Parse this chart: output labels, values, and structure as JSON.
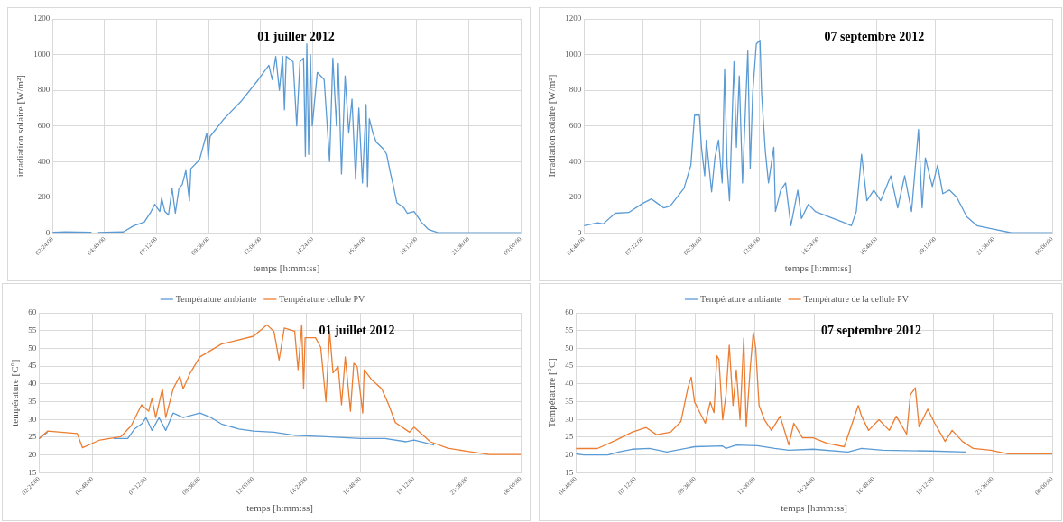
{
  "chart_data": [
    {
      "type": "line",
      "title": "01 juiller 2012",
      "xlabel": "temps [h:mm:ss]",
      "ylabel": "irradiation solaire [W/m²]",
      "grid": true,
      "legend": false,
      "marker": "none",
      "line_style": "solid",
      "xlim": [
        "2012-07-01T02:24",
        "2012-07-02T00:00"
      ],
      "xticks": [
        {
          "value": "2012-07-01T02:24",
          "label": "02:24:00"
        },
        {
          "value": "2012-07-01T04:48",
          "label": "04:48:00"
        },
        {
          "value": "2012-07-01T07:12",
          "label": "07:12:00"
        },
        {
          "value": "2012-07-01T09:36",
          "label": "09:36:00"
        },
        {
          "value": "2012-07-01T12:00",
          "label": "12:00:00"
        },
        {
          "value": "2012-07-01T14:24",
          "label": "14:24:00"
        },
        {
          "value": "2012-07-01T16:48",
          "label": "16:48:00"
        },
        {
          "value": "2012-07-01T19:12",
          "label": "19:12:00"
        },
        {
          "value": "2012-07-01T21:36",
          "label": "21:36:00"
        },
        {
          "value": "2012-07-02T00:00",
          "label": "00:00:00"
        }
      ],
      "ylim": [
        0,
        1200
      ],
      "yticks": [
        0,
        200,
        400,
        600,
        800,
        1000,
        1200
      ],
      "series": [
        {
          "color": "#5b9bd5",
          "x": [
            "2012-07-01T02:24",
            "2012-07-01T03:00",
            "2012-07-01T04:12",
            "2012-07-01T04:18",
            "2012-07-01T04:30",
            "2012-07-01T05:12",
            "2012-07-01T05:40",
            "2012-07-01T06:09",
            "2012-07-01T06:38",
            "2012-07-01T06:57",
            "2012-07-01T07:07",
            "2012-07-01T07:21",
            "2012-07-01T07:26",
            "2012-07-01T07:35",
            "2012-07-01T07:45",
            "2012-07-01T07:55",
            "2012-07-01T08:04",
            "2012-07-01T08:14",
            "2012-07-01T08:23",
            "2012-07-01T08:33",
            "2012-07-01T08:43",
            "2012-07-01T08:47",
            "2012-07-01T09:11",
            "2012-07-01T09:31",
            "2012-07-01T09:35",
            "2012-07-01T09:40",
            "2012-07-01T10:19",
            "2012-07-01T11:07",
            "2012-07-01T11:54",
            "2012-07-01T12:23",
            "2012-07-01T12:32",
            "2012-07-01T12:42",
            "2012-07-01T12:52",
            "2012-07-01T13:01",
            "2012-07-01T13:06",
            "2012-07-01T13:11",
            "2012-07-01T13:30",
            "2012-07-01T13:40",
            "2012-07-01T13:49",
            "2012-07-01T13:59",
            "2012-07-01T14:04",
            "2012-07-01T14:08",
            "2012-07-01T14:13",
            "2012-07-01T14:18",
            "2012-07-01T14:23",
            "2012-07-01T14:37",
            "2012-07-01T14:56",
            "2012-07-01T15:11",
            "2012-07-01T15:20",
            "2012-07-01T15:30",
            "2012-07-01T15:35",
            "2012-07-01T15:44",
            "2012-07-01T15:54",
            "2012-07-01T16:04",
            "2012-07-01T16:13",
            "2012-07-01T16:23",
            "2012-07-01T16:32",
            "2012-07-01T16:42",
            "2012-07-01T16:52",
            "2012-07-01T16:56",
            "2012-07-01T17:01",
            "2012-07-01T17:11",
            "2012-07-01T17:20",
            "2012-07-01T17:40",
            "2012-07-01T17:49",
            "2012-07-01T17:59",
            "2012-07-01T18:08",
            "2012-07-01T18:17",
            "2012-07-01T18:37",
            "2012-07-01T18:46",
            "2012-07-01T19:05",
            "2012-07-01T19:25",
            "2012-07-01T19:44",
            "2012-07-01T20:13",
            "2012-07-02T00:00"
          ],
          "values": [
            3,
            5,
            3,
            null,
            2,
            4,
            5,
            40,
            60,
            120,
            160,
            120,
            195,
            120,
            100,
            250,
            110,
            250,
            270,
            350,
            180,
            360,
            410,
            560,
            410,
            540,
            640,
            740,
            860,
            940,
            860,
            990,
            800,
            990,
            690,
            990,
            960,
            600,
            960,
            980,
            430,
            1060,
            440,
            1000,
            600,
            900,
            860,
            400,
            980,
            600,
            950,
            330,
            880,
            560,
            750,
            300,
            700,
            280,
            720,
            260,
            640,
            560,
            510,
            470,
            440,
            340,
            260,
            170,
            140,
            110,
            120,
            60,
            20,
            0,
            0
          ]
        }
      ]
    },
    {
      "type": "line",
      "title": "07 septembre 2012",
      "xlabel": "temps [h:mm:ss]",
      "ylabel": "Irradiation solaire [W/m²]",
      "grid": true,
      "legend": false,
      "marker": "none",
      "line_style": "solid",
      "xlim": [
        "2012-09-07T04:48",
        "2012-09-08T00:00"
      ],
      "xticks": [
        {
          "value": "2012-09-07T04:48",
          "label": "04:48:00"
        },
        {
          "value": "2012-09-07T07:12",
          "label": "07:12:00"
        },
        {
          "value": "2012-09-07T09:36",
          "label": "09:36:00"
        },
        {
          "value": "2012-09-07T12:00",
          "label": "12:00:00"
        },
        {
          "value": "2012-09-07T14:24",
          "label": "14:24:00"
        },
        {
          "value": "2012-09-07T16:48",
          "label": "16:48:00"
        },
        {
          "value": "2012-09-07T19:12",
          "label": "19:12:00"
        },
        {
          "value": "2012-09-07T21:36",
          "label": "21:36:00"
        },
        {
          "value": "2012-09-08T00:00",
          "label": "00:00:00"
        }
      ],
      "ylim": [
        0,
        1200
      ],
      "yticks": [
        0,
        200,
        400,
        600,
        800,
        1000,
        1200
      ],
      "series": [
        {
          "color": "#5b9bd5",
          "x": [
            "2012-09-07T04:48",
            "2012-09-07T05:22",
            "2012-09-07T05:35",
            "2012-09-07T06:05",
            "2012-09-07T06:38",
            "2012-09-07T07:12",
            "2012-09-07T07:34",
            "2012-09-07T07:46",
            "2012-09-07T08:04",
            "2012-09-07T08:20",
            "2012-09-07T08:54",
            "2012-09-07T09:11",
            "2012-09-07T09:20",
            "2012-09-07T09:32",
            "2012-09-07T09:37",
            "2012-09-07T09:45",
            "2012-09-07T09:49",
            "2012-09-07T10:02",
            "2012-09-07T10:10",
            "2012-09-07T10:19",
            "2012-09-07T10:28",
            "2012-09-07T10:32",
            "2012-09-07T10:34",
            "2012-09-07T10:40",
            "2012-09-07T10:46",
            "2012-09-07T10:57",
            "2012-09-07T11:03",
            "2012-09-07T11:10",
            "2012-09-07T11:18",
            "2012-09-07T11:31",
            "2012-09-07T11:37",
            "2012-09-07T11:43",
            "2012-09-07T11:52",
            "2012-09-07T12:01",
            "2012-09-07T12:05",
            "2012-09-07T12:14",
            "2012-09-07T12:22",
            "2012-09-07T12:35",
            "2012-09-07T12:39",
            "2012-09-07T12:52",
            "2012-09-07T13:04",
            "2012-09-07T13:17",
            "2012-09-07T13:34",
            "2012-09-07T13:43",
            "2012-09-07T14:00",
            "2012-09-07T14:17",
            "2012-09-07T14:50",
            "2012-09-07T15:25",
            "2012-09-07T15:46",
            "2012-09-07T15:58",
            "2012-09-07T16:11",
            "2012-09-07T16:24",
            "2012-09-07T16:41",
            "2012-09-07T16:58",
            "2012-09-07T17:23",
            "2012-09-07T17:40",
            "2012-09-07T17:57",
            "2012-09-07T18:14",
            "2012-09-07T18:31",
            "2012-09-07T18:40",
            "2012-09-07T18:48",
            "2012-09-07T19:05",
            "2012-09-07T19:18",
            "2012-09-07T19:31",
            "2012-09-07T19:47",
            "2012-09-07T20:05",
            "2012-09-07T20:30",
            "2012-09-07T20:55",
            "2012-09-07T21:38",
            "2012-09-07T22:20",
            "2012-09-08T00:00"
          ],
          "values": [
            40,
            56,
            50,
            110,
            114,
            165,
            190,
            170,
            140,
            150,
            250,
            380,
            660,
            660,
            480,
            320,
            520,
            230,
            420,
            520,
            280,
            720,
            920,
            380,
            180,
            960,
            480,
            880,
            280,
            1020,
            360,
            780,
            1060,
            1080,
            780,
            460,
            280,
            480,
            120,
            240,
            280,
            40,
            240,
            80,
            160,
            120,
            90,
            60,
            40,
            120,
            440,
            180,
            240,
            180,
            320,
            140,
            320,
            120,
            580,
            140,
            420,
            260,
            380,
            220,
            240,
            200,
            90,
            40,
            20,
            0,
            0
          ]
        }
      ]
    },
    {
      "type": "line",
      "title": "01 juillet 2012",
      "xlabel": "temps [h:mm:ss]",
      "ylabel": "température [C°]",
      "grid": true,
      "legend": "top",
      "marker": "none",
      "line_style": "solid",
      "xlim": [
        "2012-07-01T02:24",
        "2012-07-02T00:00"
      ],
      "xticks": [
        {
          "value": "2012-07-01T02:24",
          "label": "02:24:00"
        },
        {
          "value": "2012-07-01T04:48",
          "label": "04:48:00"
        },
        {
          "value": "2012-07-01T07:12",
          "label": "07:12:00"
        },
        {
          "value": "2012-07-01T09:36",
          "label": "09:36:00"
        },
        {
          "value": "2012-07-01T12:00",
          "label": "12:00:00"
        },
        {
          "value": "2012-07-01T14:24",
          "label": "14:24:00"
        },
        {
          "value": "2012-07-01T16:48",
          "label": "16:48:00"
        },
        {
          "value": "2012-07-01T19:12",
          "label": "19:12:00"
        },
        {
          "value": "2012-07-01T21:36",
          "label": "21:36:00"
        },
        {
          "value": "2012-07-02T00:00",
          "label": "00:00:00"
        }
      ],
      "ylim": [
        15,
        60
      ],
      "yticks": [
        15,
        20,
        25,
        30,
        35,
        40,
        45,
        50,
        55,
        60
      ],
      "series": [
        {
          "name": "Température ambiante",
          "color": "#5b9bd5",
          "x": [
            "2012-07-01T02:24",
            "2012-07-01T02:47",
            "2012-07-01T04:07",
            "2012-07-01T04:21",
            "2012-07-01T05:08",
            "2012-07-01T05:45",
            "2012-07-01T06:23",
            "2012-07-01T06:41",
            "2012-07-01T07:00",
            "2012-07-01T07:12",
            "2012-07-01T07:28",
            "2012-07-01T07:47",
            "2012-07-01T08:05",
            "2012-07-01T08:25",
            "2012-07-01T08:52",
            "2012-07-01T09:37",
            "2012-07-01T10:07",
            "2012-07-01T10:35",
            "2012-07-01T11:22",
            "2012-07-01T12:01",
            "2012-07-01T12:56",
            "2012-07-01T13:52",
            "2012-07-01T15:16",
            "2012-07-01T16:50",
            "2012-07-01T17:55",
            "2012-07-01T18:52",
            "2012-07-01T19:13",
            "2012-07-01T20:07"
          ],
          "values": [
            24.6,
            26.4,
            null,
            null,
            null,
            24.6,
            24.6,
            27.3,
            28.7,
            30.5,
            26.9,
            30.5,
            26.9,
            31.8,
            30.5,
            31.8,
            30.5,
            28.7,
            27.3,
            26.7,
            26.4,
            25.5,
            25.1,
            24.6,
            24.6,
            23.7,
            24.2,
            22.8
          ]
        },
        {
          "name": "Température cellule PV",
          "color": "#ed7d31",
          "x": [
            "2012-07-01T02:24",
            "2012-07-01T02:47",
            "2012-07-01T04:07",
            "2012-07-01T04:21",
            "2012-07-01T05:08",
            "2012-07-01T06:04",
            "2012-07-01T06:32",
            "2012-07-01T07:00",
            "2012-07-01T07:19",
            "2012-07-01T07:28",
            "2012-07-01T07:38",
            "2012-07-01T07:56",
            "2012-07-01T08:05",
            "2012-07-01T08:25",
            "2012-07-01T08:43",
            "2012-07-01T08:52",
            "2012-07-01T09:11",
            "2012-07-01T09:37",
            "2012-07-01T10:35",
            "2012-07-01T12:01",
            "2012-07-01T12:37",
            "2012-07-01T12:56",
            "2012-07-01T13:10",
            "2012-07-01T13:24",
            "2012-07-01T13:52",
            "2012-07-01T14:01",
            "2012-07-01T14:11",
            "2012-07-01T14:16",
            "2012-07-01T14:20",
            "2012-07-01T14:48",
            "2012-07-01T15:02",
            "2012-07-01T15:16",
            "2012-07-01T15:26",
            "2012-07-01T15:35",
            "2012-07-01T15:49",
            "2012-07-01T15:58",
            "2012-07-01T16:08",
            "2012-07-01T16:22",
            "2012-07-01T16:31",
            "2012-07-01T16:40",
            "2012-07-01T16:55",
            "2012-07-01T16:59",
            "2012-07-01T17:18",
            "2012-07-01T17:46",
            "2012-07-01T18:05",
            "2012-07-01T18:23",
            "2012-07-01T19:01",
            "2012-07-01T19:13",
            "2012-07-01T19:57",
            "2012-07-01T20:44",
            "2012-07-01T21:37",
            "2012-07-01T22:36",
            "2012-07-02T00:00"
          ],
          "values": [
            24.6,
            26.7,
            26,
            22,
            24.2,
            25.1,
            28.2,
            34.1,
            32.3,
            35.9,
            30.5,
            38.6,
            30.5,
            38.6,
            42.2,
            38.6,
            43.1,
            47.6,
            51.2,
            53.4,
            56.6,
            54.8,
            46.7,
            55.7,
            54.8,
            44,
            56.6,
            38.6,
            53,
            53,
            50.3,
            35,
            54.8,
            43.1,
            44.9,
            34.1,
            47.6,
            32.3,
            45.8,
            44.9,
            31.8,
            44,
            41.3,
            38.6,
            34.1,
            29.1,
            26.4,
            27.8,
            23.7,
            21.9,
            21,
            20.1,
            20.1
          ]
        }
      ]
    },
    {
      "type": "line",
      "title": "07 septembre 2012",
      "xlabel": "temps [h:mm:ss]",
      "ylabel": "Température [°C]",
      "grid": true,
      "legend": "top",
      "marker": "none",
      "line_style": "solid",
      "xlim": [
        "2012-09-07T04:48",
        "2012-09-08T00:00"
      ],
      "xticks": [
        {
          "value": "2012-09-07T04:48",
          "label": "04:48:00"
        },
        {
          "value": "2012-09-07T07:12",
          "label": "07:12:00"
        },
        {
          "value": "2012-09-07T09:36",
          "label": "09:36:00"
        },
        {
          "value": "2012-09-07T12:00",
          "label": "12:00:00"
        },
        {
          "value": "2012-09-07T14:24",
          "label": "14:24:00"
        },
        {
          "value": "2012-09-07T16:48",
          "label": "16:48:00"
        },
        {
          "value": "2012-09-07T19:12",
          "label": "19:12:00"
        },
        {
          "value": "2012-09-07T21:36",
          "label": "21:36:00"
        },
        {
          "value": "2012-09-08T00:00",
          "label": "00:00:00"
        }
      ],
      "ylim": [
        15,
        60
      ],
      "yticks": [
        15,
        20,
        25,
        30,
        35,
        40,
        45,
        50,
        55,
        60
      ],
      "series": [
        {
          "name": "Température ambiante",
          "color": "#5b9bd5",
          "x": [
            "2012-09-07T04:48",
            "2012-09-07T05:07",
            "2012-09-07T06:05",
            "2012-09-07T06:31",
            "2012-09-07T07:04",
            "2012-09-07T07:46",
            "2012-09-07T08:28",
            "2012-09-07T09:35",
            "2012-09-07T10:43",
            "2012-09-07T10:51",
            "2012-09-07T11:16",
            "2012-09-07T12:07",
            "2012-09-07T12:49",
            "2012-09-07T13:23",
            "2012-09-07T14:22",
            "2012-09-07T15:46",
            "2012-09-07T16:19",
            "2012-09-07T17:10",
            "2012-09-07T19:07",
            "2012-09-07T20:32"
          ],
          "values": [
            20.3,
            20,
            20,
            20.8,
            21.6,
            21.8,
            20.8,
            22.3,
            22.5,
            21.8,
            22.8,
            22.6,
            21.8,
            21.3,
            21.6,
            20.8,
            21.8,
            21.3,
            21.1,
            20.8
          ]
        },
        {
          "name": "Température de la cellule PV",
          "color": "#ed7d31",
          "x": [
            "2012-09-07T04:48",
            "2012-09-07T05:40",
            "2012-09-07T06:22",
            "2012-09-07T07:04",
            "2012-09-07T07:38",
            "2012-09-07T08:03",
            "2012-09-07T08:37",
            "2012-09-07T09:02",
            "2012-09-07T09:19",
            "2012-09-07T09:27",
            "2012-09-07T09:35",
            "2012-09-07T09:48",
            "2012-09-07T10:01",
            "2012-09-07T10:13",
            "2012-09-07T10:22",
            "2012-09-07T10:29",
            "2012-09-07T10:34",
            "2012-09-07T10:43",
            "2012-09-07T10:51",
            "2012-09-07T10:59",
            "2012-09-07T11:08",
            "2012-09-07T11:16",
            "2012-09-07T11:25",
            "2012-09-07T11:34",
            "2012-09-07T11:40",
            "2012-09-07T11:50",
            "2012-09-07T11:57",
            "2012-09-07T12:03",
            "2012-09-07T12:11",
            "2012-09-07T12:24",
            "2012-09-07T12:41",
            "2012-09-07T13:02",
            "2012-09-07T13:23",
            "2012-09-07T13:35",
            "2012-09-07T13:56",
            "2012-09-07T14:22",
            "2012-09-07T14:55",
            "2012-09-07T15:37",
            "2012-09-07T16:11",
            "2012-09-07T16:19",
            "2012-09-07T16:36",
            "2012-09-07T17:01",
            "2012-09-07T17:26",
            "2012-09-07T17:43",
            "2012-09-07T18:08",
            "2012-09-07T18:17",
            "2012-09-07T18:29",
            "2012-09-07T18:38",
            "2012-09-07T18:59",
            "2012-09-07T19:16",
            "2012-09-07T19:41",
            "2012-09-07T19:58",
            "2012-09-07T20:23",
            "2012-09-07T20:49",
            "2012-09-07T21:31",
            "2012-09-07T22:13",
            "2012-09-08T00:00"
          ],
          "values": [
            21.8,
            21.8,
            24,
            26.4,
            27.7,
            25.7,
            26.4,
            29.4,
            38.9,
            41.9,
            34.9,
            31.9,
            28.9,
            34.9,
            31.9,
            47.9,
            46.9,
            29.9,
            36.9,
            50.9,
            33.9,
            43.9,
            29.9,
            52.9,
            27.9,
            44.9,
            54.5,
            50,
            33.9,
            29.9,
            26.9,
            30.9,
            22.8,
            28.9,
            24.8,
            24.8,
            23.3,
            22.3,
            33.9,
            30.9,
            26.9,
            29.9,
            26.9,
            30.9,
            25.8,
            36.9,
            38.9,
            27.9,
            32.9,
            28.9,
            23.8,
            26.9,
            23.8,
            21.8,
            21.3,
            20.3,
            20.3
          ]
        }
      ]
    }
  ]
}
